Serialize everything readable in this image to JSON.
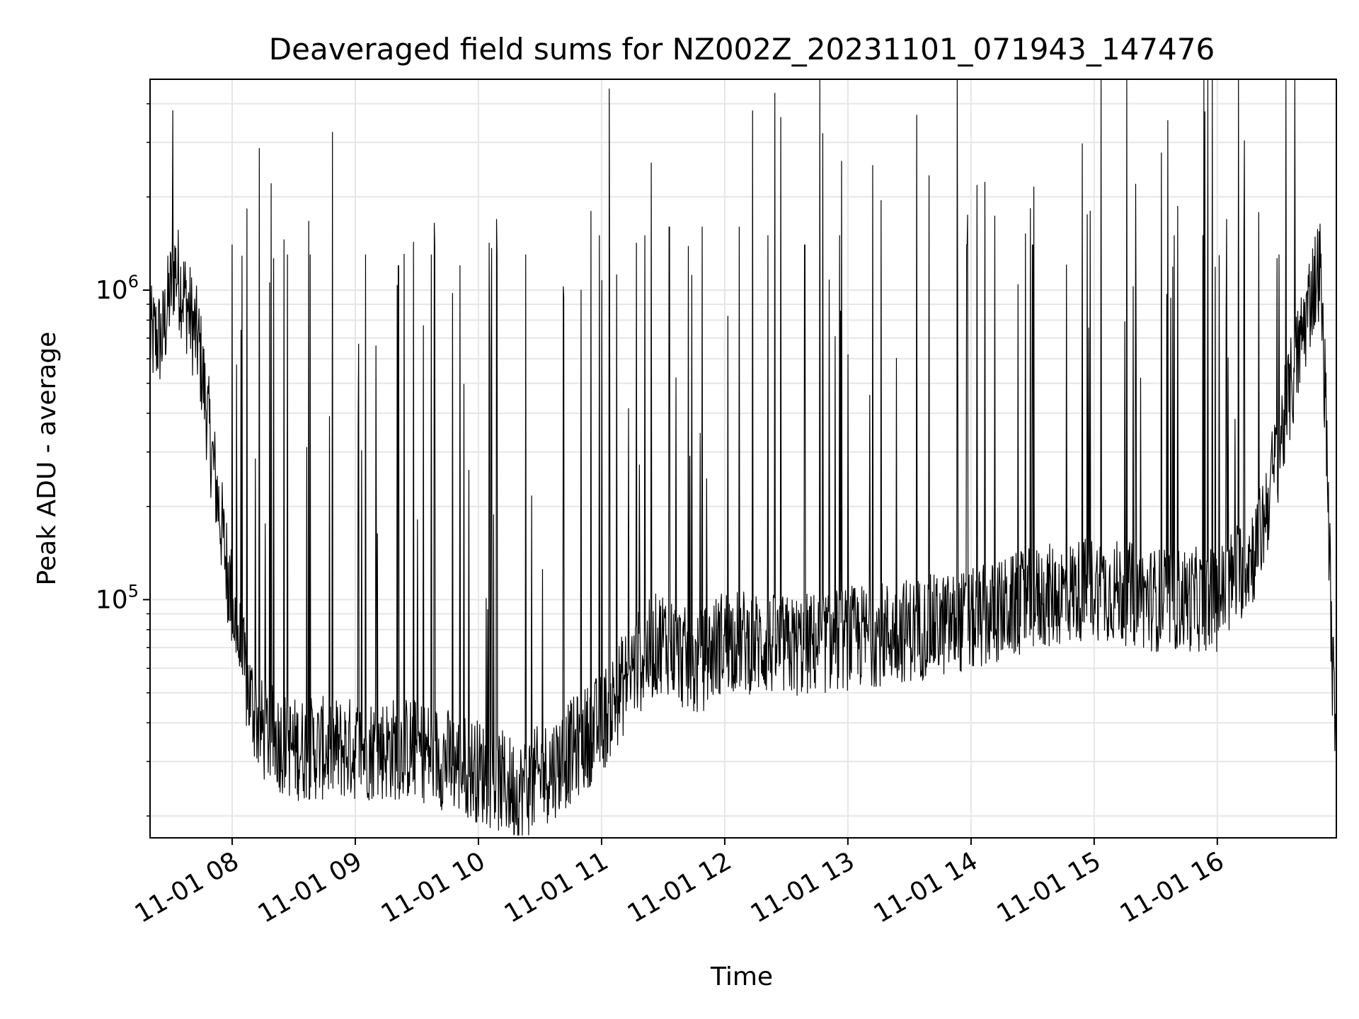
{
  "chart_data": {
    "type": "line",
    "title": "Deaveraged field sums for NZ002Z_20231101_071943_147476",
    "xlabel": "Time",
    "ylabel": "Peak ADU - average",
    "yscale": "log",
    "xlim": [
      "2023-11-01 07:20",
      "2023-11-01 16:58"
    ],
    "ylim": [
      17000,
      4800000
    ],
    "x_tick_labels": [
      "11-01 08",
      "11-01 09",
      "11-01 10",
      "11-01 11",
      "11-01 12",
      "11-01 13",
      "11-01 14",
      "11-01 15",
      "11-01 16"
    ],
    "y_tick_labels": [
      {
        "base": "10",
        "exponent": "5",
        "value": 100000
      },
      {
        "base": "10",
        "exponent": "6",
        "value": 1000000
      }
    ],
    "grid": true,
    "legend": "none",
    "line_color": "#000000",
    "series": [
      {
        "baseline": [
          [
            "2023-11-01 07:20",
            700000
          ],
          [
            "2023-11-01 07:26",
            700000
          ],
          [
            "2023-11-01 07:32",
            1200000
          ],
          [
            "2023-11-01 07:38",
            900000
          ],
          [
            "2023-11-01 07:44",
            650000
          ],
          [
            "2023-11-01 07:50",
            300000
          ],
          [
            "2023-11-01 07:56",
            150000
          ],
          [
            "2023-11-01 08:02",
            80000
          ],
          [
            "2023-11-01 08:08",
            50000
          ],
          [
            "2023-11-01 08:14",
            38000
          ],
          [
            "2023-11-01 08:30",
            33000
          ],
          [
            "2023-11-01 09:00",
            33000
          ],
          [
            "2023-11-01 09:30",
            33000
          ],
          [
            "2023-11-01 10:00",
            28000
          ],
          [
            "2023-11-01 10:20",
            24000
          ],
          [
            "2023-11-01 10:40",
            30000
          ],
          [
            "2023-11-01 11:00",
            40000
          ],
          [
            "2023-11-01 11:15",
            60000
          ],
          [
            "2023-11-01 11:30",
            75000
          ],
          [
            "2023-11-01 11:45",
            60000
          ],
          [
            "2023-11-01 12:00",
            75000
          ],
          [
            "2023-11-01 12:30",
            70000
          ],
          [
            "2023-11-01 13:00",
            75000
          ],
          [
            "2023-11-01 13:30",
            80000
          ],
          [
            "2023-11-01 14:00",
            85000
          ],
          [
            "2023-11-01 14:30",
            100000
          ],
          [
            "2023-11-01 15:00",
            110000
          ],
          [
            "2023-11-01 15:30",
            100000
          ],
          [
            "2023-11-01 16:00",
            100000
          ],
          [
            "2023-11-01 16:20",
            150000
          ],
          [
            "2023-11-01 16:35",
            450000
          ],
          [
            "2023-11-01 16:46",
            1000000
          ],
          [
            "2023-11-01 16:50",
            1200000
          ],
          [
            "2023-11-01 16:53",
            400000
          ],
          [
            "2023-11-01 16:56",
            60000
          ],
          [
            "2023-11-01 16:58",
            40000
          ]
        ],
        "spikes": [
          [
            "2023-11-01 07:31",
            3800000
          ],
          [
            "2023-11-01 08:00",
            1400000
          ],
          [
            "2023-11-01 08:27",
            1300000
          ],
          [
            "2023-11-01 08:38",
            1300000
          ],
          [
            "2023-11-01 09:05",
            1300000
          ],
          [
            "2023-11-01 09:21",
            1200000
          ],
          [
            "2023-11-01 09:37",
            1300000
          ],
          [
            "2023-11-01 09:51",
            1200000
          ],
          [
            "2023-11-01 10:09",
            1300000
          ],
          [
            "2023-11-01 10:23",
            1300000
          ],
          [
            "2023-11-01 10:50",
            1000000
          ],
          [
            "2023-11-01 10:59",
            1500000
          ],
          [
            "2023-11-01 11:21",
            1500000
          ],
          [
            "2023-11-01 11:33",
            1600000
          ],
          [
            "2023-11-01 11:49",
            1600000
          ],
          [
            "2023-11-01 12:07",
            1600000
          ],
          [
            "2023-11-01 12:21",
            1500000
          ],
          [
            "2023-11-01 12:39",
            1400000
          ],
          [
            "2023-11-01 12:56",
            1500000
          ],
          [
            "2023-11-01 13:58",
            1400000
          ],
          [
            "2023-11-01 14:30",
            1400000
          ],
          [
            "2023-11-01 14:58",
            1800000
          ],
          [
            "2023-11-01 15:39",
            1500000
          ],
          [
            "2023-11-01 15:53",
            1500000
          ],
          [
            "2023-11-01 16:13",
            1500000
          ],
          [
            "2023-11-01 16:30",
            1300000
          ]
        ]
      }
    ]
  }
}
